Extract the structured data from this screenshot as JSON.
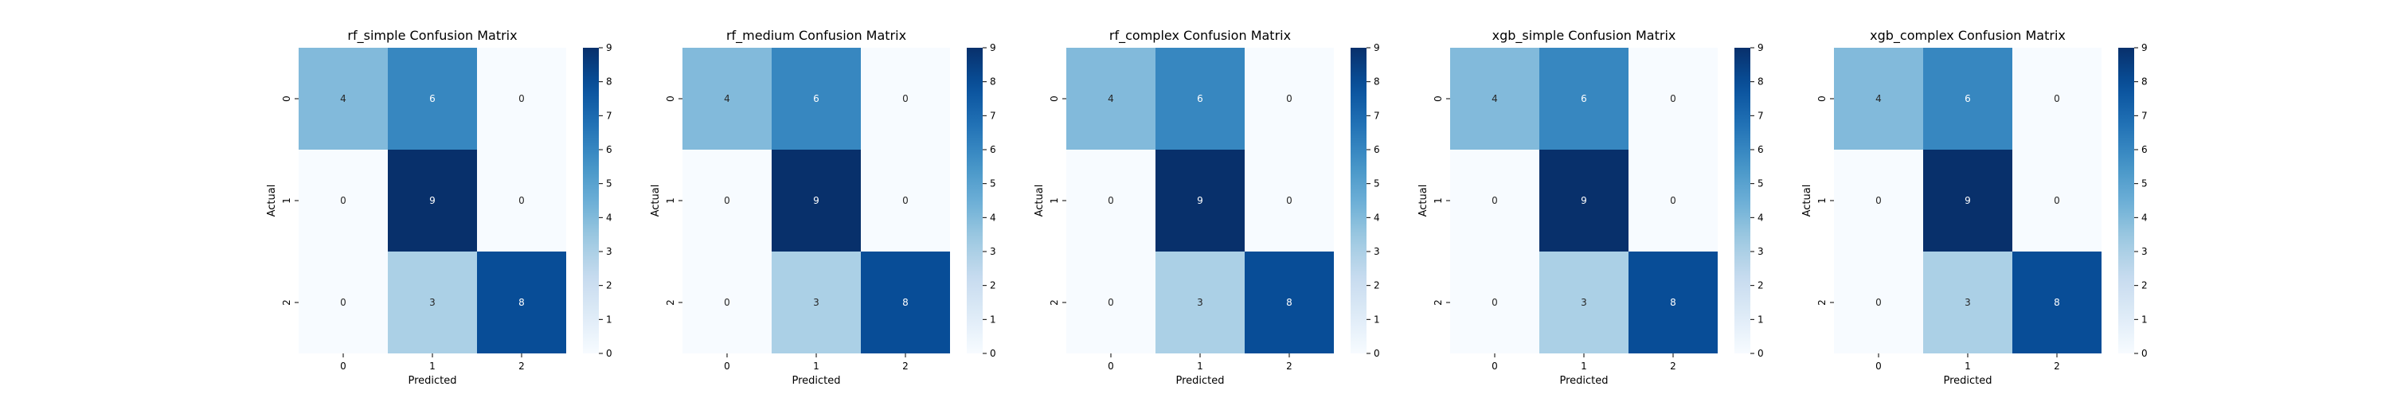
{
  "colormap": "Blues",
  "chart_data": [
    {
      "type": "heatmap",
      "title": "rf_simple Confusion Matrix",
      "xlabel": "Predicted",
      "ylabel": "Actual",
      "x_categories": [
        "0",
        "1",
        "2"
      ],
      "y_categories": [
        "0",
        "1",
        "2"
      ],
      "values": [
        [
          4,
          6,
          0
        ],
        [
          0,
          9,
          0
        ],
        [
          0,
          3,
          8
        ]
      ],
      "colorbar": {
        "min": 0,
        "max": 9,
        "ticks": [
          0,
          1,
          2,
          3,
          4,
          5,
          6,
          7,
          8,
          9
        ]
      }
    },
    {
      "type": "heatmap",
      "title": "rf_medium Confusion Matrix",
      "xlabel": "Predicted",
      "ylabel": "Actual",
      "x_categories": [
        "0",
        "1",
        "2"
      ],
      "y_categories": [
        "0",
        "1",
        "2"
      ],
      "values": [
        [
          4,
          6,
          0
        ],
        [
          0,
          9,
          0
        ],
        [
          0,
          3,
          8
        ]
      ],
      "colorbar": {
        "min": 0,
        "max": 9,
        "ticks": [
          0,
          1,
          2,
          3,
          4,
          5,
          6,
          7,
          8,
          9
        ]
      }
    },
    {
      "type": "heatmap",
      "title": "rf_complex Confusion Matrix",
      "xlabel": "Predicted",
      "ylabel": "Actual",
      "x_categories": [
        "0",
        "1",
        "2"
      ],
      "y_categories": [
        "0",
        "1",
        "2"
      ],
      "values": [
        [
          4,
          6,
          0
        ],
        [
          0,
          9,
          0
        ],
        [
          0,
          3,
          8
        ]
      ],
      "colorbar": {
        "min": 0,
        "max": 9,
        "ticks": [
          0,
          1,
          2,
          3,
          4,
          5,
          6,
          7,
          8,
          9
        ]
      }
    },
    {
      "type": "heatmap",
      "title": "xgb_simple Confusion Matrix",
      "xlabel": "Predicted",
      "ylabel": "Actual",
      "x_categories": [
        "0",
        "1",
        "2"
      ],
      "y_categories": [
        "0",
        "1",
        "2"
      ],
      "values": [
        [
          4,
          6,
          0
        ],
        [
          0,
          9,
          0
        ],
        [
          0,
          3,
          8
        ]
      ],
      "colorbar": {
        "min": 0,
        "max": 9,
        "ticks": [
          0,
          1,
          2,
          3,
          4,
          5,
          6,
          7,
          8,
          9
        ]
      }
    },
    {
      "type": "heatmap",
      "title": "xgb_complex Confusion Matrix",
      "xlabel": "Predicted",
      "ylabel": "Actual",
      "x_categories": [
        "0",
        "1",
        "2"
      ],
      "y_categories": [
        "0",
        "1",
        "2"
      ],
      "values": [
        [
          4,
          6,
          0
        ],
        [
          0,
          9,
          0
        ],
        [
          0,
          3,
          8
        ]
      ],
      "colorbar": {
        "min": 0,
        "max": 9,
        "ticks": [
          0,
          1,
          2,
          3,
          4,
          5,
          6,
          7,
          8,
          9
        ]
      }
    }
  ]
}
